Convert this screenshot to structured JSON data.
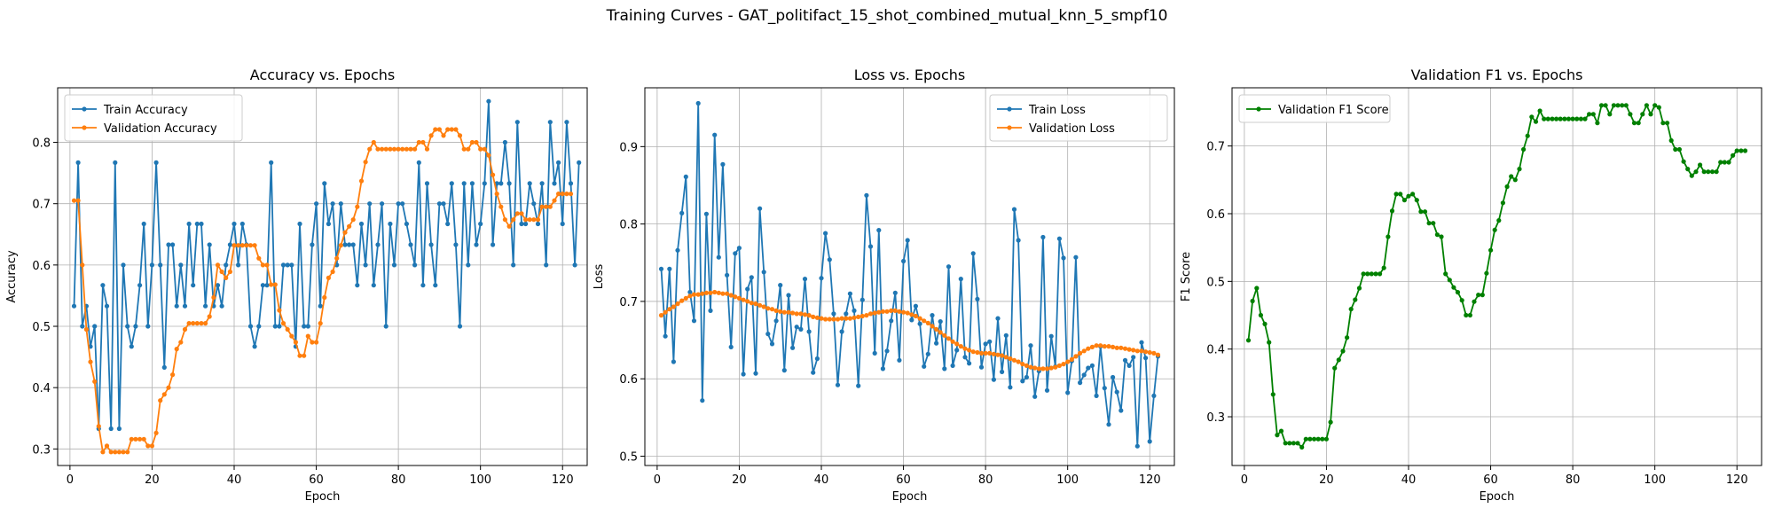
{
  "suptitle": "Training Curves - GAT_politifact_15_shot_combined_mutual_knn_5_smpf10",
  "chart_data": [
    {
      "type": "line",
      "title": "Accuracy vs. Epochs",
      "xlabel": "Epoch",
      "ylabel": "Accuracy",
      "xlim": [
        -3,
        126
      ],
      "ylim": [
        0.273,
        0.889
      ],
      "xticks": [
        0,
        20,
        40,
        60,
        80,
        100,
        120
      ],
      "yticks": [
        0.3,
        0.4,
        0.5,
        0.6,
        0.7,
        0.8
      ],
      "ytick_labels": [
        "0.3",
        "0.4",
        "0.5",
        "0.6",
        "0.7",
        "0.8"
      ],
      "grid": true,
      "legend": "upper left",
      "x_start": 1,
      "series": [
        {
          "name": "Train Accuracy",
          "color": "#1f77b4",
          "values": [
            0.533,
            0.767,
            0.5,
            0.533,
            0.467,
            0.5,
            0.333,
            0.567,
            0.533,
            0.333,
            0.767,
            0.333,
            0.6,
            0.5,
            0.467,
            0.5,
            0.567,
            0.667,
            0.5,
            0.6,
            0.767,
            0.6,
            0.433,
            0.633,
            0.633,
            0.533,
            0.6,
            0.533,
            0.667,
            0.567,
            0.667,
            0.667,
            0.533,
            0.633,
            0.533,
            0.567,
            0.533,
            0.6,
            0.633,
            0.667,
            0.6,
            0.667,
            0.633,
            0.5,
            0.467,
            0.5,
            0.567,
            0.567,
            0.767,
            0.5,
            0.5,
            0.6,
            0.6,
            0.6,
            0.467,
            0.667,
            0.5,
            0.5,
            0.633,
            0.7,
            0.533,
            0.733,
            0.667,
            0.7,
            0.6,
            0.7,
            0.633,
            0.633,
            0.633,
            0.567,
            0.667,
            0.6,
            0.7,
            0.567,
            0.633,
            0.7,
            0.5,
            0.667,
            0.6,
            0.7,
            0.7,
            0.667,
            0.633,
            0.6,
            0.767,
            0.567,
            0.733,
            0.633,
            0.567,
            0.7,
            0.7,
            0.667,
            0.733,
            0.633,
            0.5,
            0.733,
            0.6,
            0.733,
            0.633,
            0.667,
            0.733,
            0.867,
            0.633,
            0.733,
            0.733,
            0.8,
            0.733,
            0.6,
            0.833,
            0.667,
            0.667,
            0.733,
            0.7,
            0.667,
            0.733,
            0.6,
            0.833,
            0.733,
            0.767,
            0.667,
            0.833,
            0.733,
            0.6,
            0.767
          ]
        },
        {
          "name": "Validation Accuracy",
          "color": "#ff7f0e",
          "values": [
            0.705,
            0.705,
            0.6,
            0.495,
            0.442,
            0.41,
            0.337,
            0.295,
            0.305,
            0.295,
            0.295,
            0.295,
            0.295,
            0.295,
            0.316,
            0.316,
            0.316,
            0.316,
            0.305,
            0.305,
            0.326,
            0.379,
            0.389,
            0.4,
            0.421,
            0.463,
            0.474,
            0.495,
            0.505,
            0.505,
            0.505,
            0.505,
            0.505,
            0.516,
            0.547,
            0.6,
            0.589,
            0.579,
            0.589,
            0.632,
            0.632,
            0.632,
            0.632,
            0.632,
            0.632,
            0.611,
            0.6,
            0.6,
            0.568,
            0.568,
            0.526,
            0.505,
            0.495,
            0.484,
            0.474,
            0.452,
            0.452,
            0.484,
            0.474,
            0.474,
            0.505,
            0.547,
            0.579,
            0.589,
            0.611,
            0.632,
            0.653,
            0.663,
            0.674,
            0.695,
            0.737,
            0.768,
            0.789,
            0.8,
            0.789,
            0.789,
            0.789,
            0.789,
            0.789,
            0.789,
            0.789,
            0.789,
            0.789,
            0.789,
            0.8,
            0.8,
            0.789,
            0.811,
            0.821,
            0.821,
            0.811,
            0.821,
            0.821,
            0.821,
            0.811,
            0.789,
            0.789,
            0.8,
            0.8,
            0.789,
            0.789,
            0.779,
            0.747,
            0.716,
            0.695,
            0.674,
            0.663,
            0.674,
            0.684,
            0.684,
            0.674,
            0.674,
            0.674,
            0.674,
            0.695,
            0.695,
            0.695,
            0.705,
            0.716,
            0.716,
            0.716,
            0.716
          ]
        }
      ]
    },
    {
      "type": "line",
      "title": "Loss vs. Epochs",
      "xlabel": "Epoch",
      "ylabel": "Loss",
      "xlim": [
        -3,
        126
      ],
      "ylim": [
        0.488,
        0.976
      ],
      "xticks": [
        0,
        20,
        40,
        60,
        80,
        100,
        120
      ],
      "yticks": [
        0.5,
        0.6,
        0.7,
        0.8,
        0.9
      ],
      "ytick_labels": [
        "0.5",
        "0.6",
        "0.7",
        "0.8",
        "0.9"
      ],
      "grid": true,
      "legend": "upper right",
      "x_start": 1,
      "series": [
        {
          "name": "Train Loss",
          "color": "#1f77b4",
          "values": [
            0.742,
            0.655,
            0.742,
            0.622,
            0.766,
            0.814,
            0.861,
            0.712,
            0.675,
            0.956,
            0.572,
            0.813,
            0.688,
            0.915,
            0.757,
            0.877,
            0.734,
            0.641,
            0.762,
            0.769,
            0.606,
            0.716,
            0.731,
            0.607,
            0.82,
            0.738,
            0.658,
            0.645,
            0.675,
            0.721,
            0.611,
            0.708,
            0.64,
            0.667,
            0.664,
            0.729,
            0.661,
            0.608,
            0.626,
            0.73,
            0.788,
            0.754,
            0.684,
            0.592,
            0.661,
            0.684,
            0.71,
            0.688,
            0.591,
            0.702,
            0.837,
            0.771,
            0.633,
            0.792,
            0.613,
            0.636,
            0.675,
            0.711,
            0.624,
            0.752,
            0.779,
            0.676,
            0.694,
            0.671,
            0.616,
            0.632,
            0.682,
            0.646,
            0.674,
            0.613,
            0.745,
            0.617,
            0.637,
            0.729,
            0.628,
            0.62,
            0.762,
            0.703,
            0.615,
            0.645,
            0.648,
            0.599,
            0.678,
            0.609,
            0.656,
            0.589,
            0.819,
            0.779,
            0.597,
            0.602,
            0.643,
            0.577,
            0.61,
            0.783,
            0.585,
            0.655,
            0.616,
            0.781,
            0.756,
            0.582,
            0.623,
            0.757,
            0.595,
            0.605,
            0.614,
            0.617,
            0.578,
            0.642,
            0.588,
            0.541,
            0.602,
            0.583,
            0.559,
            0.624,
            0.617,
            0.628,
            0.513,
            0.647,
            0.627,
            0.519,
            0.578,
            0.629
          ]
        },
        {
          "name": "Validation Loss",
          "color": "#ff7f0e",
          "values": [
            0.682,
            0.686,
            0.69,
            0.693,
            0.697,
            0.701,
            0.704,
            0.707,
            0.709,
            0.709,
            0.71,
            0.711,
            0.711,
            0.712,
            0.711,
            0.71,
            0.71,
            0.708,
            0.706,
            0.704,
            0.702,
            0.7,
            0.698,
            0.697,
            0.695,
            0.693,
            0.691,
            0.69,
            0.688,
            0.687,
            0.686,
            0.686,
            0.685,
            0.684,
            0.684,
            0.683,
            0.682,
            0.68,
            0.679,
            0.678,
            0.677,
            0.677,
            0.677,
            0.677,
            0.678,
            0.678,
            0.678,
            0.679,
            0.68,
            0.681,
            0.682,
            0.684,
            0.685,
            0.686,
            0.687,
            0.687,
            0.688,
            0.688,
            0.687,
            0.686,
            0.685,
            0.683,
            0.681,
            0.678,
            0.675,
            0.672,
            0.668,
            0.664,
            0.66,
            0.656,
            0.652,
            0.648,
            0.645,
            0.642,
            0.639,
            0.637,
            0.635,
            0.634,
            0.633,
            0.633,
            0.633,
            0.632,
            0.631,
            0.63,
            0.628,
            0.626,
            0.624,
            0.622,
            0.619,
            0.617,
            0.615,
            0.614,
            0.613,
            0.613,
            0.613,
            0.614,
            0.615,
            0.617,
            0.619,
            0.622,
            0.625,
            0.629,
            0.633,
            0.636,
            0.639,
            0.641,
            0.643,
            0.643,
            0.642,
            0.642,
            0.641,
            0.64,
            0.64,
            0.639,
            0.638,
            0.637,
            0.636,
            0.636,
            0.635,
            0.634,
            0.633,
            0.631
          ]
        }
      ]
    },
    {
      "type": "line",
      "title": "Validation F1 vs. Epochs",
      "xlabel": "Epoch",
      "ylabel": "F1 Score",
      "xlim": [
        -3,
        126
      ],
      "ylim": [
        0.228,
        0.786
      ],
      "xticks": [
        0,
        20,
        40,
        60,
        80,
        100,
        120
      ],
      "yticks": [
        0.3,
        0.4,
        0.5,
        0.6,
        0.7
      ],
      "ytick_labels": [
        "0.3",
        "0.4",
        "0.5",
        "0.6",
        "0.7"
      ],
      "grid": true,
      "legend": "upper left",
      "x_start": 1,
      "series": [
        {
          "name": "Validation F1 Score",
          "color": "#008000",
          "values": [
            0.413,
            0.471,
            0.49,
            0.45,
            0.437,
            0.41,
            0.333,
            0.273,
            0.279,
            0.261,
            0.261,
            0.261,
            0.261,
            0.255,
            0.267,
            0.267,
            0.267,
            0.267,
            0.267,
            0.267,
            0.292,
            0.372,
            0.384,
            0.397,
            0.417,
            0.459,
            0.473,
            0.49,
            0.511,
            0.511,
            0.511,
            0.511,
            0.511,
            0.52,
            0.566,
            0.604,
            0.629,
            0.629,
            0.62,
            0.626,
            0.629,
            0.62,
            0.603,
            0.603,
            0.586,
            0.586,
            0.569,
            0.566,
            0.511,
            0.502,
            0.491,
            0.484,
            0.472,
            0.45,
            0.45,
            0.47,
            0.48,
            0.48,
            0.512,
            0.546,
            0.576,
            0.59,
            0.616,
            0.64,
            0.655,
            0.65,
            0.666,
            0.695,
            0.715,
            0.743,
            0.736,
            0.752,
            0.74,
            0.74,
            0.74,
            0.74,
            0.74,
            0.74,
            0.74,
            0.74,
            0.74,
            0.74,
            0.74,
            0.747,
            0.747,
            0.734,
            0.76,
            0.76,
            0.747,
            0.76,
            0.76,
            0.76,
            0.76,
            0.747,
            0.734,
            0.734,
            0.747,
            0.76,
            0.747,
            0.76,
            0.757,
            0.734,
            0.734,
            0.708,
            0.695,
            0.695,
            0.677,
            0.666,
            0.656,
            0.662,
            0.672,
            0.662,
            0.662,
            0.662,
            0.662,
            0.676,
            0.676,
            0.676,
            0.686,
            0.693,
            0.693,
            0.693
          ]
        }
      ]
    }
  ]
}
